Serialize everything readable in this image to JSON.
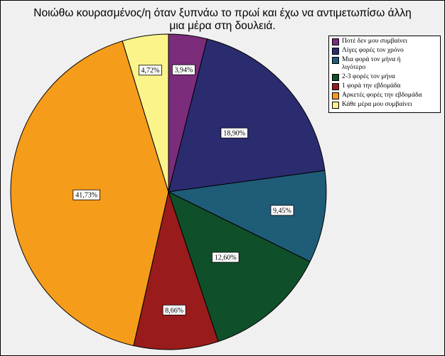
{
  "chart_data": {
    "type": "pie",
    "title": "Νοιώθω κουρασμένος/η όταν ξυπνάω το πρωί και έχω να αντιμετωπίσω άλλη μια μέρα στη δουλειά.",
    "title_lines": [
      "Νοιώθω κουρασμένος/η όταν ξυπνάω το πρωί και έχω να αντιμετωπίσω άλλη",
      "μια μέρα στη δουλειά."
    ],
    "categories": [
      "Ποτέ δεν μου συμβαίνει",
      "Λίγες φορές τον χρόνο",
      "Μια φορά τον μήνα ή λιγότερο",
      "2-3 φορές τον μήνα",
      "1 φορά την εβδομάδα",
      "Αρκετές φορές την εβδομάδα",
      "Κάθε μέρα μου συμβαίνει"
    ],
    "legend_lines": [
      [
        "Ποτέ δεν μου συμβαίνει"
      ],
      [
        "Λίγες φορές τον χρόνο"
      ],
      [
        "Μια φορά τον μήνα ή",
        "λιγότερο"
      ],
      [
        "2-3 φορές τον μήνα"
      ],
      [
        "1 φορά την εβδομάδα"
      ],
      [
        "Αρκετές φορές την εβδομάδα"
      ],
      [
        "Κάθε μέρα μου συμβαίνει"
      ]
    ],
    "values": [
      3.94,
      18.9,
      9.45,
      12.6,
      8.66,
      41.73,
      4.72
    ],
    "labels": [
      "3,94%",
      "18,90%",
      "9,45%",
      "12,60%",
      "8,66%",
      "41,73%",
      "4,72%"
    ],
    "colors": [
      "#7b2c7b",
      "#2b2b6f",
      "#1f5c78",
      "#0f4f2a",
      "#9a1b1b",
      "#f59c1a",
      "#fbf48a"
    ],
    "start": "12 o'clock",
    "direction": "clockwise",
    "legend_position": "top-right"
  }
}
